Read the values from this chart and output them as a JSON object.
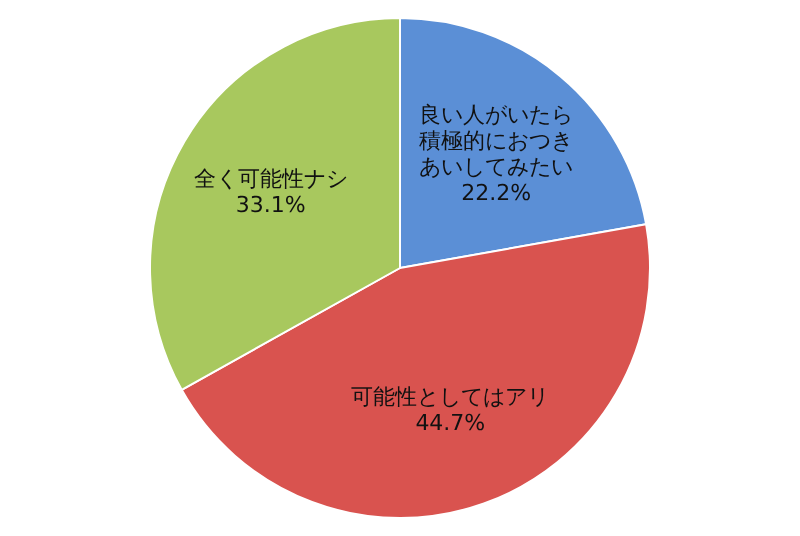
{
  "chart_data": {
    "type": "pie",
    "categories": [
      "良い人がいたら積極的におつきあいしてみたい",
      "可能性としてはアリ",
      "全く可能性ナシ"
    ],
    "values": [
      22.2,
      44.7,
      33.1
    ],
    "colors": [
      "#5b8fd6",
      "#d9534f",
      "#a8c85e"
    ],
    "value_labels": [
      "22.2%",
      "44.7%",
      "33.1%"
    ]
  }
}
